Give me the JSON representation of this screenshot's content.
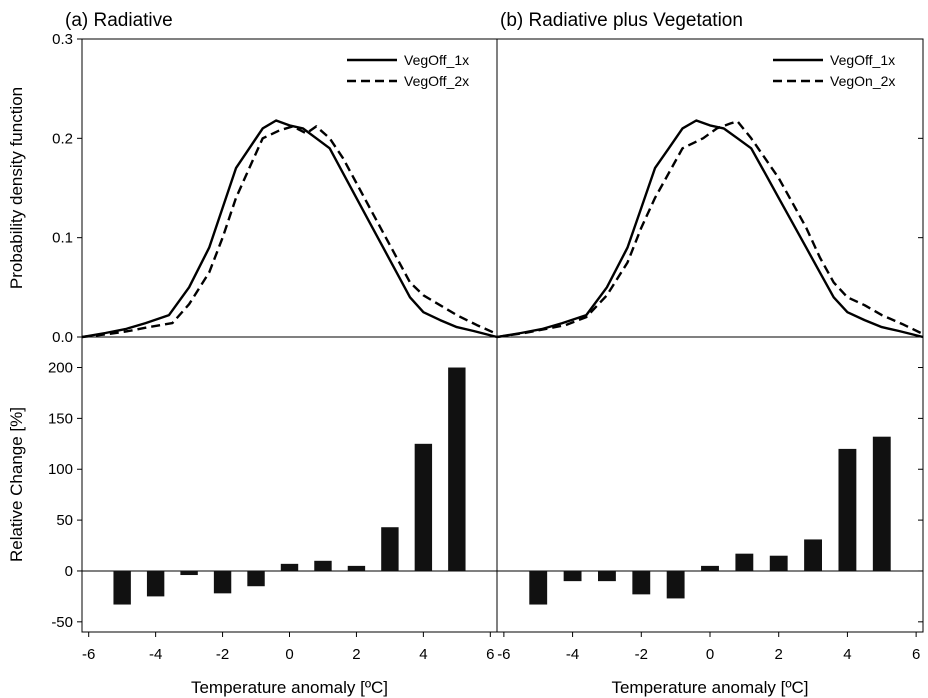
{
  "chart_data": [
    {
      "type": "line",
      "panel": "top-left",
      "title": "(a) Radiative",
      "ylabel": "Probability density function",
      "xlim": [
        -6.2,
        6.2
      ],
      "ylim": [
        0,
        0.3
      ],
      "yticks": [
        "0.0",
        "0.1",
        "0.2",
        "0.3"
      ],
      "legend": "top-right",
      "series": [
        {
          "name": "VegOff_1x",
          "style": "solid",
          "points": [
            [
              -6.2,
              0.0
            ],
            [
              -5.5,
              0.004
            ],
            [
              -4.9,
              0.008
            ],
            [
              -4.3,
              0.014
            ],
            [
              -3.6,
              0.022
            ],
            [
              -3.0,
              0.05
            ],
            [
              -2.4,
              0.09
            ],
            [
              -2.0,
              0.13
            ],
            [
              -1.6,
              0.17
            ],
            [
              -1.2,
              0.19
            ],
            [
              -0.8,
              0.21
            ],
            [
              -0.4,
              0.218
            ],
            [
              0.0,
              0.213
            ],
            [
              0.4,
              0.21
            ],
            [
              0.8,
              0.2
            ],
            [
              1.2,
              0.19
            ],
            [
              1.6,
              0.165
            ],
            [
              2.0,
              0.14
            ],
            [
              2.4,
              0.115
            ],
            [
              2.8,
              0.09
            ],
            [
              3.2,
              0.065
            ],
            [
              3.6,
              0.04
            ],
            [
              4.0,
              0.025
            ],
            [
              4.5,
              0.017
            ],
            [
              5.0,
              0.01
            ],
            [
              5.5,
              0.006
            ],
            [
              6.2,
              0.0
            ]
          ]
        },
        {
          "name": "VegOff_2x",
          "style": "dashed",
          "points": [
            [
              -6.2,
              0.0
            ],
            [
              -5.4,
              0.003
            ],
            [
              -4.8,
              0.006
            ],
            [
              -4.2,
              0.01
            ],
            [
              -3.5,
              0.014
            ],
            [
              -3.0,
              0.033
            ],
            [
              -2.4,
              0.065
            ],
            [
              -2.0,
              0.1
            ],
            [
              -1.6,
              0.14
            ],
            [
              -1.2,
              0.17
            ],
            [
              -0.8,
              0.2
            ],
            [
              -0.3,
              0.208
            ],
            [
              0.1,
              0.212
            ],
            [
              0.5,
              0.205
            ],
            [
              0.8,
              0.212
            ],
            [
              1.2,
              0.2
            ],
            [
              1.6,
              0.18
            ],
            [
              2.0,
              0.155
            ],
            [
              2.4,
              0.13
            ],
            [
              2.8,
              0.105
            ],
            [
              3.2,
              0.08
            ],
            [
              3.6,
              0.055
            ],
            [
              4.0,
              0.042
            ],
            [
              4.5,
              0.032
            ],
            [
              5.0,
              0.022
            ],
            [
              5.6,
              0.012
            ],
            [
              6.2,
              0.003
            ]
          ]
        }
      ]
    },
    {
      "type": "line",
      "panel": "top-right",
      "title": "(b) Radiative plus Vegetation",
      "ylabel": "",
      "xlim": [
        -6.2,
        6.2
      ],
      "ylim": [
        0,
        0.3
      ],
      "legend": "top-right",
      "series": [
        {
          "name": "VegOff_1x",
          "style": "solid",
          "points": [
            [
              -6.2,
              0.0
            ],
            [
              -5.5,
              0.004
            ],
            [
              -4.9,
              0.008
            ],
            [
              -4.3,
              0.014
            ],
            [
              -3.6,
              0.022
            ],
            [
              -3.0,
              0.05
            ],
            [
              -2.4,
              0.09
            ],
            [
              -2.0,
              0.13
            ],
            [
              -1.6,
              0.17
            ],
            [
              -1.2,
              0.19
            ],
            [
              -0.8,
              0.21
            ],
            [
              -0.4,
              0.218
            ],
            [
              0.0,
              0.213
            ],
            [
              0.4,
              0.21
            ],
            [
              0.8,
              0.2
            ],
            [
              1.2,
              0.19
            ],
            [
              1.6,
              0.165
            ],
            [
              2.0,
              0.14
            ],
            [
              2.4,
              0.115
            ],
            [
              2.8,
              0.09
            ],
            [
              3.2,
              0.065
            ],
            [
              3.6,
              0.04
            ],
            [
              4.0,
              0.025
            ],
            [
              4.5,
              0.017
            ],
            [
              5.0,
              0.01
            ],
            [
              5.5,
              0.006
            ],
            [
              6.2,
              0.0
            ]
          ]
        },
        {
          "name": "VegOn_2x",
          "style": "dashed",
          "points": [
            [
              -6.2,
              0.0
            ],
            [
              -5.4,
              0.004
            ],
            [
              -4.8,
              0.008
            ],
            [
              -4.2,
              0.012
            ],
            [
              -3.6,
              0.02
            ],
            [
              -3.0,
              0.042
            ],
            [
              -2.4,
              0.075
            ],
            [
              -2.0,
              0.11
            ],
            [
              -1.6,
              0.14
            ],
            [
              -1.2,
              0.165
            ],
            [
              -0.8,
              0.19
            ],
            [
              -0.5,
              0.195
            ],
            [
              -0.2,
              0.2
            ],
            [
              0.2,
              0.21
            ],
            [
              0.6,
              0.215
            ],
            [
              0.8,
              0.217
            ],
            [
              1.2,
              0.2
            ],
            [
              1.6,
              0.18
            ],
            [
              2.0,
              0.16
            ],
            [
              2.4,
              0.135
            ],
            [
              2.8,
              0.11
            ],
            [
              3.2,
              0.08
            ],
            [
              3.6,
              0.055
            ],
            [
              4.0,
              0.04
            ],
            [
              4.5,
              0.032
            ],
            [
              5.0,
              0.022
            ],
            [
              5.6,
              0.013
            ],
            [
              6.2,
              0.003
            ]
          ]
        }
      ]
    },
    {
      "type": "bar",
      "panel": "bottom-left",
      "xlabel": "Temperature anomaly [ºC]",
      "ylabel": "Relative Change [%]",
      "xlim": [
        -6.2,
        6.2
      ],
      "ylim": [
        -60,
        230
      ],
      "xticks": [
        "-6",
        "-4",
        "-2",
        "0",
        "2",
        "4",
        "6"
      ],
      "yticks": [
        "-50",
        "0",
        "50",
        "100",
        "150",
        "200"
      ],
      "x": [
        -5,
        -4,
        -3,
        -2,
        -1,
        0,
        1,
        2,
        3,
        4,
        5
      ],
      "values": [
        -33,
        -25,
        -4,
        -22,
        -15,
        7,
        10,
        5,
        43,
        125,
        200
      ]
    },
    {
      "type": "bar",
      "panel": "bottom-right",
      "xlabel": "Temperature anomaly [ºC]",
      "ylabel": "",
      "xlim": [
        -6.2,
        6.2
      ],
      "ylim": [
        -60,
        230
      ],
      "xticks": [
        "-6",
        "-4",
        "-2",
        "0",
        "2",
        "4",
        "6"
      ],
      "x": [
        -5,
        -4,
        -3,
        -2,
        -1,
        0,
        1,
        2,
        3,
        4,
        5
      ],
      "values": [
        -33,
        -10,
        -10,
        -23,
        -27,
        5,
        17,
        15,
        31,
        120,
        132
      ]
    }
  ]
}
